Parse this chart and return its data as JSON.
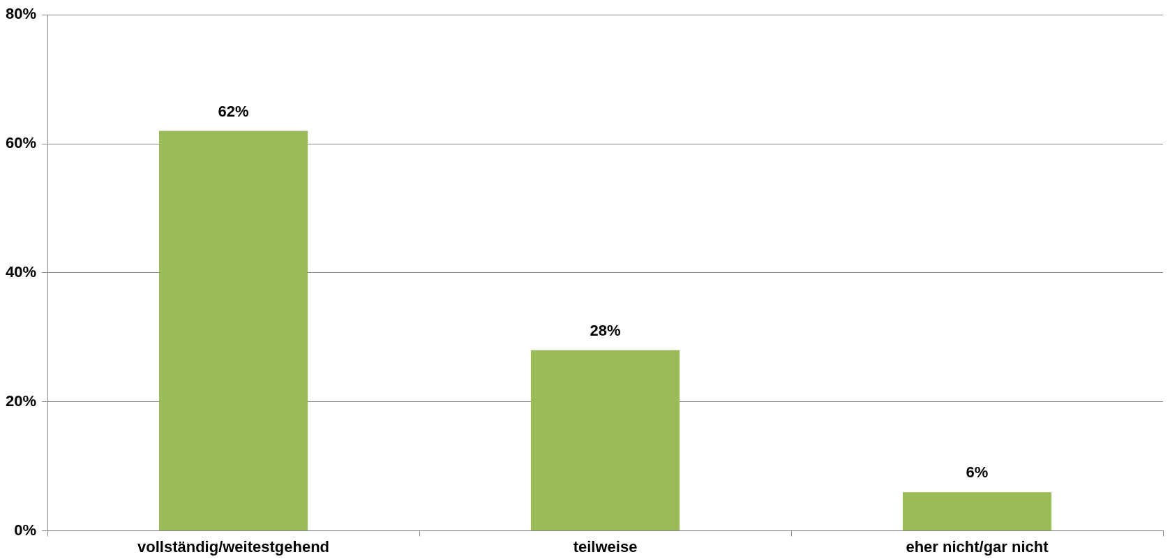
{
  "chart_data": {
    "type": "bar",
    "categories": [
      "vollständig/weitestgehend",
      "teilweise",
      "eher nicht/gar nicht"
    ],
    "values": [
      62,
      28,
      6
    ],
    "color": "#9bbb59",
    "value_labels": [
      "62%",
      "28%",
      "6%"
    ],
    "ylim": [
      0,
      80
    ],
    "yticks": [
      {
        "value": 0,
        "label": "0%"
      },
      {
        "value": 20,
        "label": "20%"
      },
      {
        "value": 40,
        "label": "40%"
      },
      {
        "value": 60,
        "label": "60%"
      },
      {
        "value": 80,
        "label": "80%"
      }
    ],
    "grid": "y",
    "legend": false
  }
}
